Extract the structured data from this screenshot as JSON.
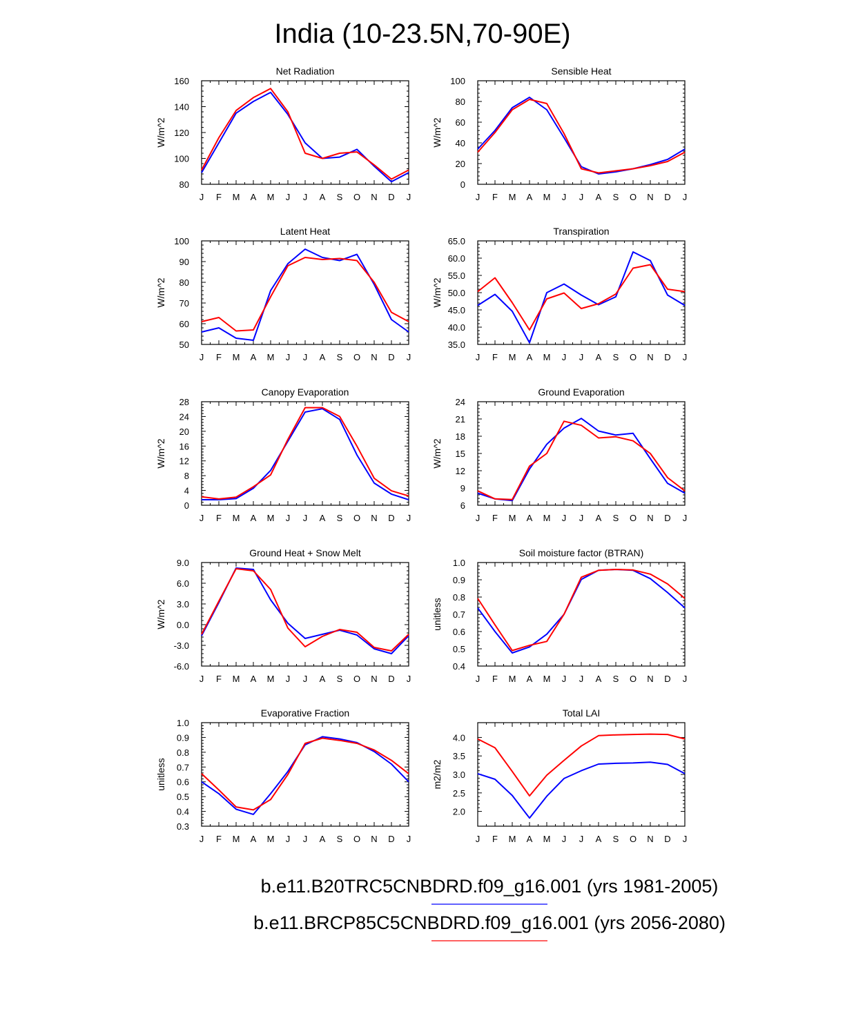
{
  "title": "India (10-23.5N,70-90E)",
  "colors": {
    "run_1981_2005": "#0000ff",
    "run_2056_2080": "#ff0000"
  },
  "legend": [
    {
      "label": "b.e11.B20TRC5CNBDRD.f09_g16.001 (yrs 1981-2005)",
      "color": "#0000ff"
    },
    {
      "label": "b.e11.BRCP85C5CNBDRD.f09_g16.001 (yrs 2056-2080)",
      "color": "#ff0000"
    }
  ],
  "chart_data": [
    {
      "type": "line",
      "title": "Net Radiation",
      "ylabel": "W/m^2",
      "categories": [
        "J",
        "F",
        "M",
        "A",
        "M",
        "J",
        "J",
        "A",
        "S",
        "O",
        "N",
        "D",
        "J"
      ],
      "ylim": [
        80,
        160
      ],
      "yticks": [
        80,
        100,
        120,
        140,
        160
      ],
      "series": [
        {
          "name": "b.e11.B20TRC5CNBDRD.f09_g16.001 (yrs 1981-2005)",
          "color": "#0000ff",
          "values": [
            89,
            112,
            135,
            144,
            151,
            134,
            112,
            100,
            101,
            107,
            94,
            82,
            89
          ]
        },
        {
          "name": "b.e11.BRCP85C5CNBDRD.f09_g16.001 (yrs 2056-2080)",
          "color": "#ff0000",
          "values": [
            91,
            116,
            137,
            147,
            154,
            136,
            104,
            100,
            104,
            105,
            95,
            84,
            91
          ]
        }
      ]
    },
    {
      "type": "line",
      "title": "Sensible Heat",
      "ylabel": "W/m^2",
      "categories": [
        "J",
        "F",
        "M",
        "A",
        "M",
        "J",
        "J",
        "A",
        "S",
        "O",
        "N",
        "D",
        "J"
      ],
      "ylim": [
        0,
        100
      ],
      "yticks": [
        0,
        20,
        40,
        60,
        80,
        100
      ],
      "series": [
        {
          "name": "b.e11.B20TRC5CNBDRD.f09_g16.001 (yrs 1981-2005)",
          "color": "#0000ff",
          "values": [
            34,
            52,
            74,
            84,
            72,
            45,
            17,
            10,
            12,
            15,
            19,
            24,
            34
          ]
        },
        {
          "name": "b.e11.BRCP85C5CNBDRD.f09_g16.001 (yrs 2056-2080)",
          "color": "#ff0000",
          "values": [
            31,
            50,
            72,
            82,
            78,
            49,
            15,
            11,
            13,
            15,
            18,
            22,
            31
          ]
        }
      ]
    },
    {
      "type": "line",
      "title": "Latent Heat",
      "ylabel": "W/m^2",
      "categories": [
        "J",
        "F",
        "M",
        "A",
        "M",
        "J",
        "J",
        "A",
        "S",
        "O",
        "N",
        "D",
        "J"
      ],
      "ylim": [
        50,
        100
      ],
      "yticks": [
        50,
        60,
        70,
        80,
        90,
        100
      ],
      "series": [
        {
          "name": "b.e11.B20TRC5CNBDRD.f09_g16.001 (yrs 1981-2005)",
          "color": "#0000ff",
          "values": [
            56,
            58,
            53,
            52,
            76,
            89,
            96,
            92,
            90.5,
            93.5,
            79,
            62,
            56
          ]
        },
        {
          "name": "b.e11.BRCP85C5CNBDRD.f09_g16.001 (yrs 2056-2080)",
          "color": "#ff0000",
          "values": [
            61,
            63,
            56.5,
            57,
            73,
            88,
            92,
            91,
            91.5,
            90.5,
            80,
            65.5,
            61
          ]
        }
      ]
    },
    {
      "type": "line",
      "title": "Transpiration",
      "ylabel": "W/m^2",
      "categories": [
        "J",
        "F",
        "M",
        "A",
        "M",
        "J",
        "J",
        "A",
        "S",
        "O",
        "N",
        "D",
        "J"
      ],
      "ylim": [
        35,
        65
      ],
      "yticks": [
        35,
        40,
        45,
        50,
        55,
        60,
        65
      ],
      "tick_decimals": 1,
      "series": [
        {
          "name": "b.e11.B20TRC5CNBDRD.f09_g16.001 (yrs 1981-2005)",
          "color": "#0000ff",
          "values": [
            46.3,
            49.5,
            44.6,
            35.5,
            50,
            52.5,
            49.3,
            46.5,
            48.8,
            61.8,
            59.3,
            49.3,
            46.3
          ]
        },
        {
          "name": "b.e11.BRCP85C5CNBDRD.f09_g16.001 (yrs 2056-2080)",
          "color": "#ff0000",
          "values": [
            50.3,
            54.3,
            47.1,
            39.2,
            48.2,
            49.9,
            45.4,
            46.8,
            49.6,
            57.1,
            58.1,
            51,
            50.3
          ]
        }
      ]
    },
    {
      "type": "line",
      "title": "Canopy Evaporation",
      "ylabel": "W/m^2",
      "categories": [
        "J",
        "F",
        "M",
        "A",
        "M",
        "J",
        "J",
        "A",
        "S",
        "O",
        "N",
        "D",
        "J"
      ],
      "ylim": [
        0,
        28
      ],
      "yticks": [
        0,
        4,
        8,
        12,
        16,
        20,
        24,
        28
      ],
      "series": [
        {
          "name": "b.e11.B20TRC5CNBDRD.f09_g16.001 (yrs 1981-2005)",
          "color": "#0000ff",
          "values": [
            1.5,
            1.5,
            1.8,
            4.6,
            9.4,
            17.3,
            25.2,
            26.1,
            23.2,
            13.6,
            6,
            3,
            1.5
          ]
        },
        {
          "name": "b.e11.BRCP85C5CNBDRD.f09_g16.001 (yrs 2056-2080)",
          "color": "#ff0000",
          "values": [
            2.3,
            1.7,
            2.2,
            5,
            8.2,
            17.8,
            26.4,
            26.4,
            24,
            16,
            7.3,
            3.9,
            2.5
          ]
        }
      ]
    },
    {
      "type": "line",
      "title": "Ground Evaporation",
      "ylabel": "W/m^2",
      "categories": [
        "J",
        "F",
        "M",
        "A",
        "M",
        "J",
        "J",
        "A",
        "S",
        "O",
        "N",
        "D",
        "J"
      ],
      "ylim": [
        6,
        24
      ],
      "yticks": [
        6,
        9,
        12,
        15,
        18,
        21,
        24
      ],
      "series": [
        {
          "name": "b.e11.B20TRC5CNBDRD.f09_g16.001 (yrs 1981-2005)",
          "color": "#0000ff",
          "values": [
            8.1,
            7.1,
            6.8,
            12.3,
            16.6,
            19.4,
            21.1,
            18.9,
            18.2,
            18.5,
            14.1,
            9.8,
            8.1
          ]
        },
        {
          "name": "b.e11.BRCP85C5CNBDRD.f09_g16.001 (yrs 2056-2080)",
          "color": "#ff0000",
          "values": [
            8.5,
            7.1,
            7,
            12.8,
            15,
            20.6,
            19.9,
            17.7,
            17.9,
            17.2,
            15,
            10.8,
            8.5
          ]
        }
      ]
    },
    {
      "type": "line",
      "title": "Ground Heat + Snow Melt",
      "ylabel": "W/m^2",
      "categories": [
        "J",
        "F",
        "M",
        "A",
        "M",
        "J",
        "J",
        "A",
        "S",
        "O",
        "N",
        "D",
        "J"
      ],
      "ylim": [
        -6,
        9
      ],
      "yticks": [
        -6,
        -3,
        0,
        3,
        6,
        9
      ],
      "tick_decimals": 1,
      "series": [
        {
          "name": "b.e11.B20TRC5CNBDRD.f09_g16.001 (yrs 1981-2005)",
          "color": "#0000ff",
          "values": [
            -1.6,
            3.2,
            8.2,
            8,
            3.6,
            0.2,
            -2,
            -1.4,
            -0.8,
            -1.5,
            -3.5,
            -4.2,
            -1.6
          ]
        },
        {
          "name": "b.e11.BRCP85C5CNBDRD.f09_g16.001 (yrs 2056-2080)",
          "color": "#ff0000",
          "values": [
            -1.4,
            3.4,
            8.1,
            7.8,
            5.1,
            -0.5,
            -3.2,
            -1.7,
            -0.7,
            -1.1,
            -3.3,
            -3.8,
            -1.4
          ]
        }
      ]
    },
    {
      "type": "line",
      "title": "Soil moisture factor (BTRAN)",
      "ylabel": "unitless",
      "categories": [
        "J",
        "F",
        "M",
        "A",
        "M",
        "J",
        "J",
        "A",
        "S",
        "O",
        "N",
        "D",
        "J"
      ],
      "ylim": [
        0.4,
        1.0
      ],
      "yticks": [
        0.4,
        0.5,
        0.6,
        0.7,
        0.8,
        0.9,
        1.0
      ],
      "tick_decimals": 1,
      "series": [
        {
          "name": "b.e11.B20TRC5CNBDRD.f09_g16.001 (yrs 1981-2005)",
          "color": "#0000ff",
          "values": [
            0.737,
            0.6,
            0.476,
            0.511,
            0.585,
            0.7,
            0.902,
            0.955,
            0.96,
            0.955,
            0.907,
            0.826,
            0.737
          ]
        },
        {
          "name": "b.e11.BRCP85C5CNBDRD.f09_g16.001 (yrs 2056-2080)",
          "color": "#ff0000",
          "values": [
            0.792,
            0.639,
            0.49,
            0.52,
            0.543,
            0.7,
            0.915,
            0.955,
            0.96,
            0.957,
            0.933,
            0.876,
            0.792
          ]
        }
      ]
    },
    {
      "type": "line",
      "title": "Evaporative Fraction",
      "ylabel": "unitless",
      "categories": [
        "J",
        "F",
        "M",
        "A",
        "M",
        "J",
        "J",
        "A",
        "S",
        "O",
        "N",
        "D",
        "J"
      ],
      "ylim": [
        0.3,
        1.0
      ],
      "yticks": [
        0.3,
        0.4,
        0.5,
        0.6,
        0.7,
        0.8,
        0.9,
        1.0
      ],
      "tick_decimals": 1,
      "series": [
        {
          "name": "b.e11.B20TRC5CNBDRD.f09_g16.001 (yrs 1981-2005)",
          "color": "#0000ff",
          "values": [
            0.6,
            0.52,
            0.415,
            0.38,
            0.52,
            0.67,
            0.85,
            0.905,
            0.89,
            0.865,
            0.805,
            0.72,
            0.6
          ]
        },
        {
          "name": "b.e11.BRCP85C5CNBDRD.f09_g16.001 (yrs 2056-2080)",
          "color": "#ff0000",
          "values": [
            0.655,
            0.545,
            0.43,
            0.41,
            0.48,
            0.65,
            0.86,
            0.895,
            0.88,
            0.86,
            0.815,
            0.745,
            0.655
          ]
        }
      ]
    },
    {
      "type": "line",
      "title": "Total LAI",
      "ylabel": "m2/m2",
      "categories": [
        "J",
        "F",
        "M",
        "A",
        "M",
        "J",
        "J",
        "A",
        "S",
        "O",
        "N",
        "D",
        "J"
      ],
      "ylim": [
        1.6,
        4.4
      ],
      "yticks": [
        2.0,
        2.5,
        3.0,
        3.5,
        4.0
      ],
      "tick_decimals": 1,
      "series": [
        {
          "name": "b.e11.B20TRC5CNBDRD.f09_g16.001 (yrs 1981-2005)",
          "color": "#0000ff",
          "values": [
            3.02,
            2.87,
            2.43,
            1.82,
            2.41,
            2.89,
            3.1,
            3.28,
            3.3,
            3.31,
            3.33,
            3.27,
            3.02
          ]
        },
        {
          "name": "b.e11.BRCP85C5CNBDRD.f09_g16.001 (yrs 2056-2080)",
          "color": "#ff0000",
          "values": [
            3.96,
            3.72,
            3.08,
            2.42,
            2.98,
            3.38,
            3.77,
            4.05,
            4.07,
            4.08,
            4.09,
            4.08,
            3.96
          ]
        }
      ]
    }
  ]
}
